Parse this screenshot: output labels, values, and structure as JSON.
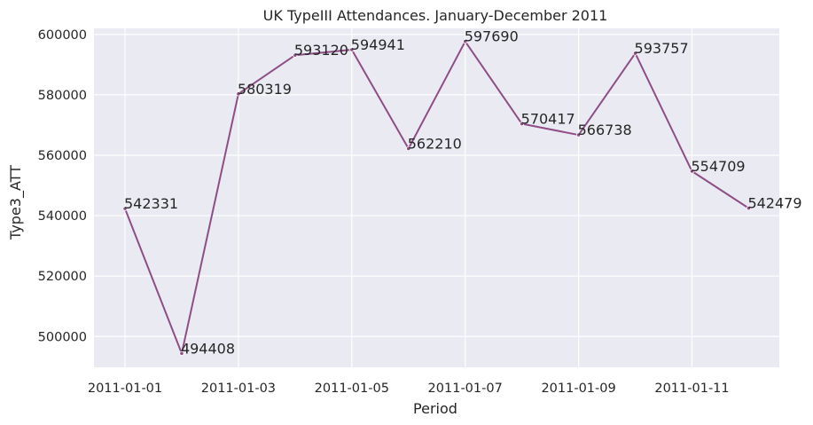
{
  "chart_data": {
    "type": "line",
    "title": "UK TypeIII Attendances. January-December 2011",
    "xlabel": "Period",
    "ylabel": "Type3_ATT",
    "x": [
      "2011-01-01",
      "2011-02-01",
      "2011-03-01",
      "2011-04-01",
      "2011-05-01",
      "2011-06-01",
      "2011-07-01",
      "2011-08-01",
      "2011-09-01",
      "2011-10-01",
      "2011-11-01",
      "2011-12-01"
    ],
    "x_tick_labels": [
      "2011-01-01",
      "2011-01-03",
      "2011-01-05",
      "2011-01-07",
      "2011-01-09",
      "2011-01-11"
    ],
    "x_tick_positions": [
      "2011-01-01",
      "2011-03-01",
      "2011-05-01",
      "2011-07-01",
      "2011-09-01",
      "2011-11-01"
    ],
    "y_ticks": [
      500000,
      520000,
      540000,
      560000,
      580000,
      600000
    ],
    "y_tick_labels": [
      "500000",
      "520000",
      "540000",
      "560000",
      "580000",
      "600000"
    ],
    "series": [
      {
        "values": [
          542331,
          494408,
          580319,
          593120,
          594941,
          562210,
          597690,
          570417,
          566738,
          593757,
          554709,
          542479
        ]
      }
    ],
    "data_labels": [
      "542331",
      "494408",
      "580319",
      "593120",
      "594941",
      "562210",
      "597690",
      "570417",
      "566738",
      "593757",
      "554709",
      "542479"
    ],
    "ylim": [
      489800,
      602000
    ],
    "grid": true,
    "background_color": "#eaeaf2",
    "line_color": "#8e4e85"
  }
}
